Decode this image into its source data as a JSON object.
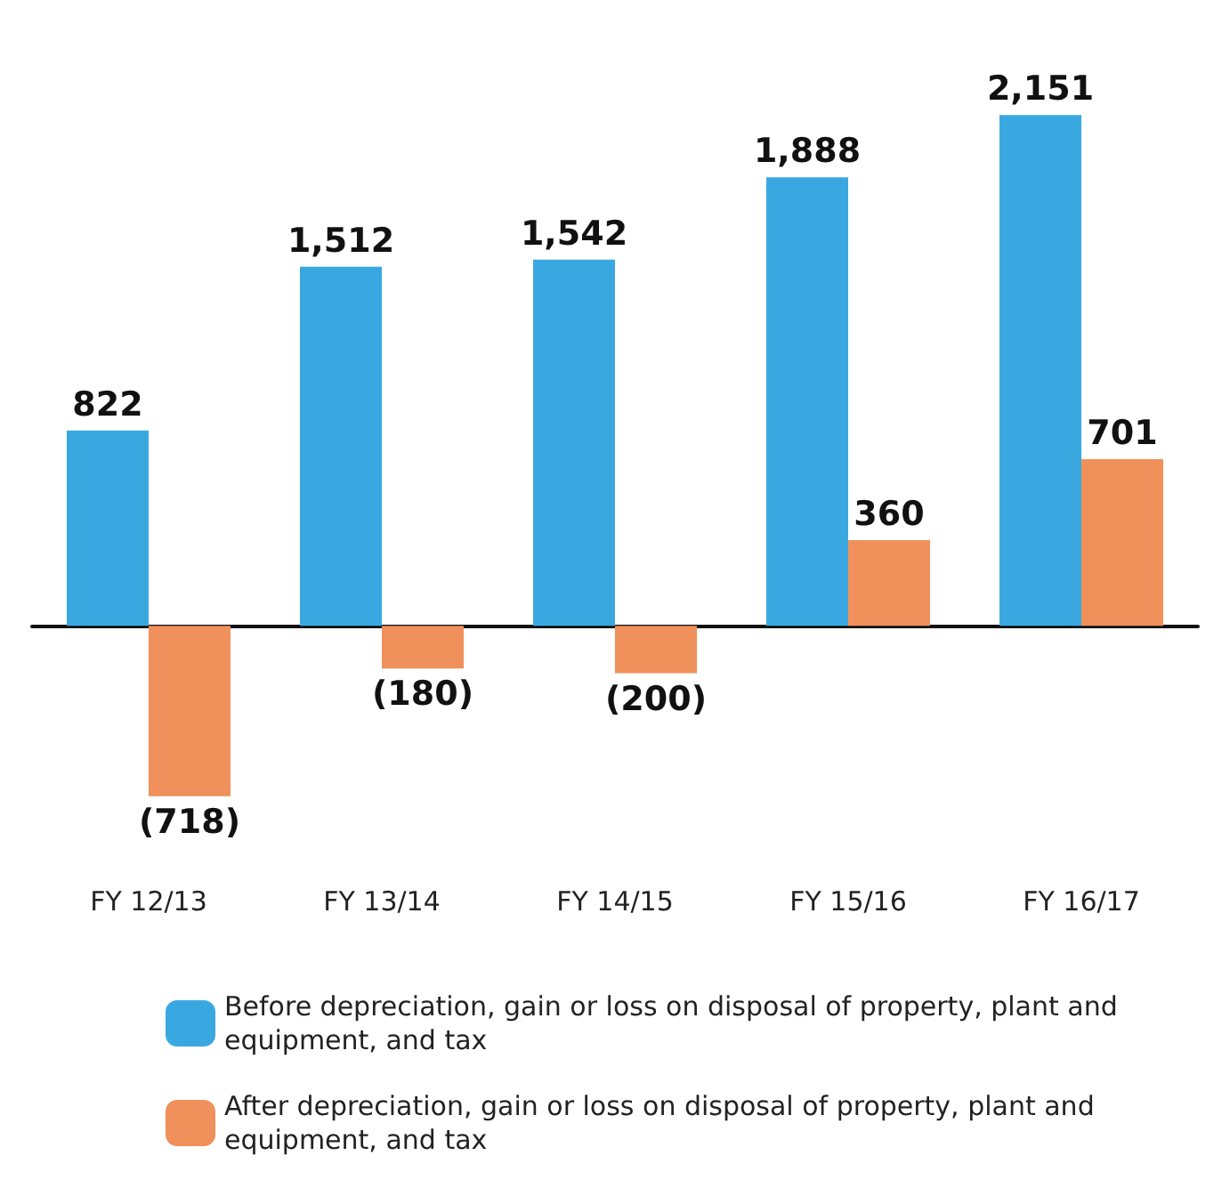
{
  "chart_data": {
    "type": "bar",
    "categories": [
      "FY 12/13",
      "FY 13/14",
      "FY 14/15",
      "FY 15/16",
      "FY 16/17"
    ],
    "series": [
      {
        "name": "Before depreciation, gain or loss on disposal of property, plant and equipment, and tax",
        "color": "#3aa8e0",
        "values": [
          822,
          1512,
          1542,
          1888,
          2151
        ],
        "value_labels": [
          "822",
          "1,512",
          "1,542",
          "1,888",
          "2,151"
        ]
      },
      {
        "name": "After depreciation, gain or loss on disposal of property, plant and equipment, and tax",
        "color": "#f0905a",
        "values": [
          -718,
          -180,
          -200,
          360,
          701
        ],
        "value_labels": [
          "(718)",
          "(180)",
          "(200)",
          "360",
          "701"
        ]
      }
    ],
    "legend": "bottom"
  }
}
